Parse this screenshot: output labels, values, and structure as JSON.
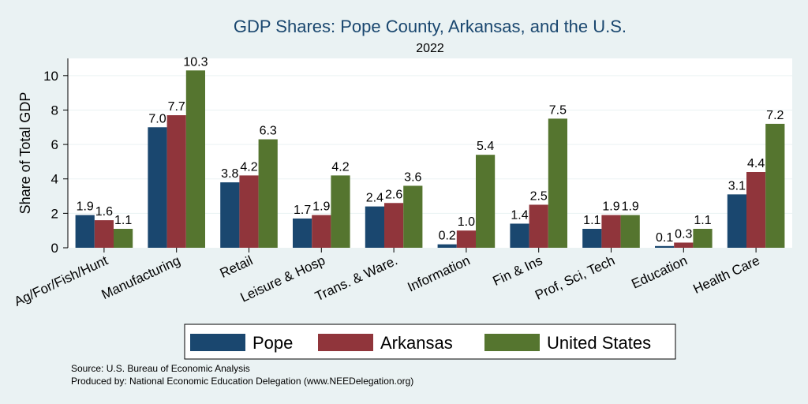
{
  "chart_data": {
    "type": "bar",
    "title": "GDP Shares: Pope County, Arkansas, and the U.S.",
    "subtitle": "2022",
    "ylabel": "Share of Total GDP",
    "xlabel": "",
    "ylim": [
      0,
      11
    ],
    "yticks": [
      0,
      2,
      4,
      6,
      8,
      10
    ],
    "grid": true,
    "legend_position": "bottom",
    "categories": [
      "Ag/For/Fish/Hunt",
      "Manufacturing",
      "Retail",
      "Leisure & Hosp",
      "Trans. & Ware.",
      "Information",
      "Fin & Ins",
      "Prof, Sci, Tech",
      "Education",
      "Health Care"
    ],
    "series": [
      {
        "name": "Pope",
        "color": "#1a476f",
        "values": [
          1.9,
          7.0,
          3.8,
          1.7,
          2.4,
          0.2,
          1.4,
          1.1,
          0.1,
          3.1
        ]
      },
      {
        "name": "Arkansas",
        "color": "#90353b",
        "values": [
          1.6,
          7.7,
          4.2,
          1.9,
          2.6,
          1.0,
          2.5,
          1.9,
          0.3,
          4.4
        ]
      },
      {
        "name": "United States",
        "color": "#55752f",
        "values": [
          1.1,
          10.3,
          6.3,
          4.2,
          3.6,
          5.4,
          7.5,
          1.9,
          1.1,
          7.2
        ]
      }
    ],
    "data_labels": [
      [
        "1.9",
        "7.0",
        "3.8",
        "1.7",
        "2.4",
        "0.2",
        "1.4",
        "1.1",
        "0.1",
        "3.1"
      ],
      [
        "1.6",
        "7.7",
        "4.2",
        "1.9",
        "2.6",
        "1.0",
        "2.5",
        "1.9",
        "0.3",
        "4.4"
      ],
      [
        "1.1",
        "10.3",
        "6.3",
        "4.2",
        "3.6",
        "5.4",
        "7.5",
        "1.9",
        "1.1",
        "7.2"
      ]
    ]
  },
  "notes": {
    "source": "Source: U.S. Bureau of Economic Analysis",
    "produced_by": "Produced by: National Economic Education Delegation (www.NEEDelegation.org)"
  }
}
